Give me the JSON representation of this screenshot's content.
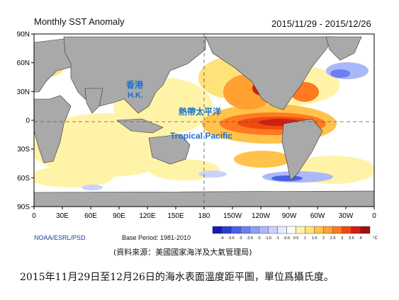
{
  "title": "Monthly SST Anomaly",
  "date_range": "2015/11/29 - 2015/12/26",
  "credit": "NOAA/ESRL/PSD",
  "base_period": "Base Period: 1981-2010",
  "source": "(資料來源：美國國家海洋及大氣管理局)",
  "caption": "2015年11月29日至12月26日的海水表面溫度距平圖，單位爲攝氏度。",
  "annotations": {
    "hk_zh": "香港",
    "hk_en": "H.K.",
    "tp_zh": "熱帶太平洋",
    "tp_en": "Tropical Pacific"
  },
  "map": {
    "lat_ticks": [
      "90N",
      "60N",
      "30N",
      "0",
      "30S",
      "60S",
      "90S"
    ],
    "lon_ticks": [
      "0",
      "30E",
      "60E",
      "90E",
      "120E",
      "150E",
      "180",
      "150W",
      "120W",
      "90W",
      "60W",
      "30W",
      "0"
    ],
    "land_color": "#a9a9a9",
    "colorbar": {
      "labels": [
        "-4",
        "-3.5",
        "-3",
        "-2.5",
        "-2",
        "-1.5",
        "-1",
        "-0.5",
        "0.5",
        "1",
        "1.5",
        "2",
        "2.5",
        "3",
        "3.5",
        "4"
      ],
      "unit": "°C",
      "colors": [
        "#1a1ab0",
        "#2a3fd0",
        "#4a60e6",
        "#6a7ff0",
        "#8a9ff6",
        "#aab8fa",
        "#c8d2fc",
        "#e6ebfe",
        "#ffffff",
        "#fff3a8",
        "#ffe27a",
        "#ffc24a",
        "#ffa030",
        "#ff7a20",
        "#f04a10",
        "#d01e10",
        "#a01010"
      ]
    }
  }
}
